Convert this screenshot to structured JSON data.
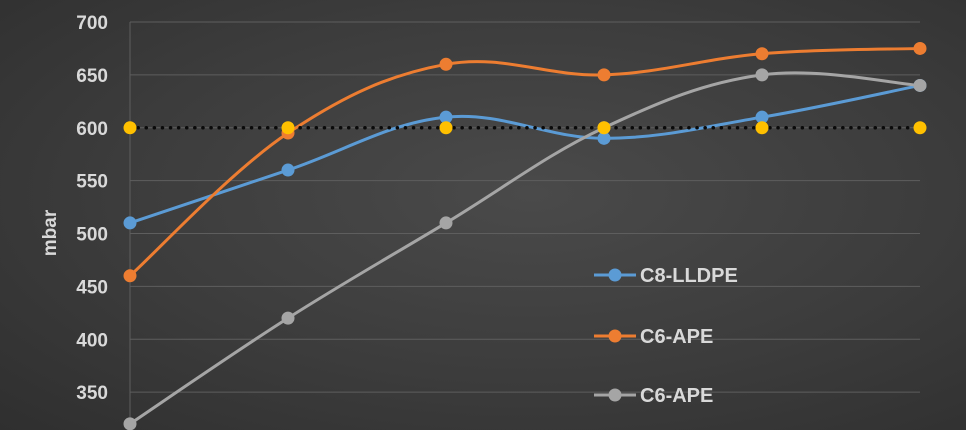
{
  "chart_data": {
    "type": "line",
    "x": [
      1,
      2,
      3,
      4,
      5,
      6
    ],
    "ylabel": "mbar",
    "xlabel": "",
    "ylim": [
      320,
      700
    ],
    "yticks": [
      "700",
      "650",
      "600",
      "550",
      "500",
      "450",
      "400",
      "350"
    ],
    "grid": true,
    "legend_position": "center-right",
    "series": [
      {
        "name": "C8-LLDPE",
        "values": [
          510,
          560,
          610,
          590,
          610,
          640
        ],
        "color": "#5b9bd5",
        "smooth": true
      },
      {
        "name": "C6-APE",
        "values": [
          460,
          595,
          660,
          650,
          670,
          675
        ],
        "color": "#ed7d31",
        "smooth": true
      },
      {
        "name": "C6-APE",
        "values": [
          320,
          420,
          510,
          600,
          650,
          640
        ],
        "color": "#a5a5a5",
        "smooth": true
      }
    ],
    "reference_line": {
      "values": [
        600,
        600,
        600,
        600,
        600,
        600
      ],
      "color": "#ffc000",
      "style": "dotted"
    }
  }
}
